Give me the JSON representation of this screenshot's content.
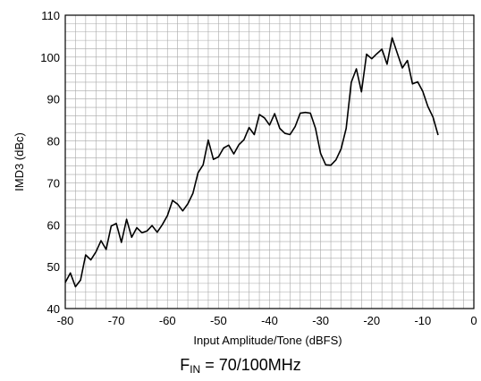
{
  "chart_data": {
    "type": "line",
    "title": "",
    "caption": {
      "main": "F",
      "subscript": "IN",
      "rest": " = 70/100MHz"
    },
    "xlabel": "Input Amplitude/Tone (dBFS)",
    "ylabel": "IMD3 (dBc)",
    "xlim": [
      -80,
      0
    ],
    "ylim": [
      40,
      110
    ],
    "xticks": [
      -80,
      -70,
      -60,
      -50,
      -40,
      -30,
      -20,
      -10,
      0
    ],
    "yticks": [
      40,
      50,
      60,
      70,
      80,
      90,
      100,
      110
    ],
    "x_tick_labels": [
      "-80",
      "-70",
      "-60",
      "-50",
      "-40",
      "-30",
      "-20",
      "-10",
      "0"
    ],
    "y_tick_labels": [
      "40",
      "50",
      "60",
      "70",
      "80",
      "90",
      "100",
      "110"
    ],
    "grid": true,
    "legend": "none",
    "series": [
      {
        "color": "#000000",
        "x": [
          -80,
          -79,
          -78,
          -77,
          -76,
          -75,
          -74,
          -73,
          -72,
          -71,
          -70,
          -69,
          -68,
          -67,
          -66,
          -65,
          -64,
          -63,
          -62,
          -61,
          -60,
          -59,
          -58,
          -57,
          -56,
          -55,
          -54,
          -53,
          -52,
          -51,
          -50,
          -49,
          -48,
          -47,
          -46,
          -45,
          -44,
          -43,
          -42,
          -41,
          -40,
          -39,
          -38,
          -37,
          -36,
          -35,
          -34,
          -33,
          -32,
          -31,
          -30,
          -29,
          -28,
          -27,
          -26,
          -25,
          -24,
          -23,
          -22,
          -21,
          -20,
          -19,
          -18,
          -17,
          -16,
          -15,
          -14,
          -13,
          -12,
          -11,
          -10,
          -9,
          -8,
          -7
        ],
        "y": [
          46.2,
          48.5,
          45.2,
          46.8,
          52.8,
          51.6,
          53.5,
          56.2,
          54.1,
          59.7,
          60.3,
          55.8,
          61.3,
          57.0,
          59.3,
          58.1,
          58.5,
          59.8,
          58.2,
          60.0,
          62.2,
          65.8,
          64.9,
          63.3,
          65.0,
          67.5,
          72.4,
          74.3,
          80.2,
          75.6,
          76.2,
          78.3,
          79.0,
          76.9,
          79.1,
          80.3,
          83.2,
          81.5,
          86.3,
          85.5,
          83.8,
          86.5,
          83.0,
          81.8,
          81.5,
          83.4,
          86.6,
          86.8,
          86.6,
          83.0,
          77.0,
          74.3,
          74.2,
          75.5,
          78.1,
          83.0,
          94.0,
          97.2,
          91.7,
          100.7,
          99.6,
          100.8,
          101.9,
          98.3,
          104.6,
          101.0,
          97.4,
          99.2,
          93.6,
          94.1,
          91.8,
          88.2,
          85.7,
          81.4
        ]
      }
    ]
  }
}
